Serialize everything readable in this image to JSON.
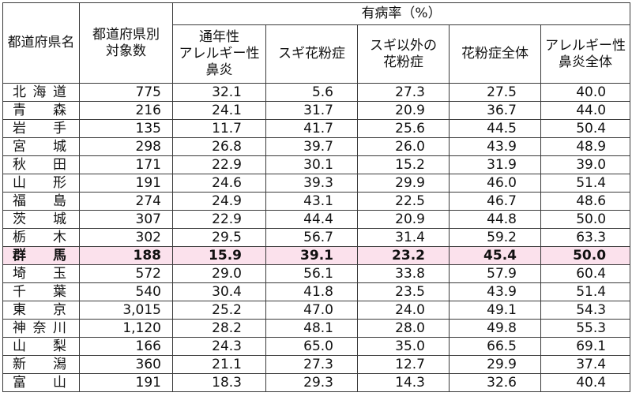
{
  "header": {
    "pref": "都道府県名",
    "count": "都道府県別\n対象数",
    "rate_group": "有病率（%）",
    "columns": [
      "通年性\nアレルギー性\n鼻炎",
      "スギ花粉症",
      "スギ以外の\n花粉症",
      "花粉症全体",
      "アレルギー性\n鼻炎全体"
    ]
  },
  "highlight_color": "#fbe1ec",
  "rows": [
    {
      "pref": "北海道",
      "count": "775",
      "v": [
        "32.1",
        "5.6",
        "27.3",
        "27.5",
        "40.0"
      ]
    },
    {
      "pref": "青森",
      "count": "216",
      "v": [
        "24.1",
        "31.7",
        "20.9",
        "36.7",
        "44.0"
      ]
    },
    {
      "pref": "岩手",
      "count": "135",
      "v": [
        "11.7",
        "41.7",
        "25.6",
        "44.5",
        "50.4"
      ]
    },
    {
      "pref": "宮城",
      "count": "298",
      "v": [
        "26.8",
        "39.7",
        "26.0",
        "43.9",
        "48.9"
      ]
    },
    {
      "pref": "秋田",
      "count": "171",
      "v": [
        "22.9",
        "30.1",
        "15.2",
        "31.9",
        "39.0"
      ]
    },
    {
      "pref": "山形",
      "count": "191",
      "v": [
        "24.6",
        "39.3",
        "29.9",
        "46.0",
        "51.4"
      ]
    },
    {
      "pref": "福島",
      "count": "274",
      "v": [
        "24.9",
        "43.1",
        "22.5",
        "46.7",
        "48.6"
      ]
    },
    {
      "pref": "茨城",
      "count": "307",
      "v": [
        "22.9",
        "44.4",
        "20.9",
        "44.8",
        "50.0"
      ]
    },
    {
      "pref": "栃木",
      "count": "302",
      "v": [
        "29.5",
        "56.7",
        "31.4",
        "59.2",
        "63.3"
      ]
    },
    {
      "pref": "群馬",
      "count": "188",
      "v": [
        "15.9",
        "39.1",
        "23.2",
        "45.4",
        "50.0"
      ],
      "highlight": true
    },
    {
      "pref": "埼玉",
      "count": "572",
      "v": [
        "29.0",
        "56.1",
        "33.8",
        "57.9",
        "60.4"
      ]
    },
    {
      "pref": "千葉",
      "count": "540",
      "v": [
        "30.4",
        "41.8",
        "23.5",
        "43.9",
        "51.4"
      ]
    },
    {
      "pref": "東京",
      "count": "3,015",
      "v": [
        "25.2",
        "47.0",
        "24.0",
        "49.1",
        "54.3"
      ]
    },
    {
      "pref": "神奈川",
      "count": "1,120",
      "v": [
        "28.2",
        "48.1",
        "28.0",
        "49.8",
        "55.3"
      ]
    },
    {
      "pref": "山梨",
      "count": "166",
      "v": [
        "24.3",
        "65.0",
        "35.0",
        "66.5",
        "69.1"
      ]
    },
    {
      "pref": "新潟",
      "count": "360",
      "v": [
        "21.1",
        "27.3",
        "12.7",
        "29.9",
        "37.4"
      ]
    },
    {
      "pref": "富山",
      "count": "191",
      "v": [
        "18.3",
        "29.3",
        "14.3",
        "32.6",
        "40.4"
      ]
    }
  ]
}
